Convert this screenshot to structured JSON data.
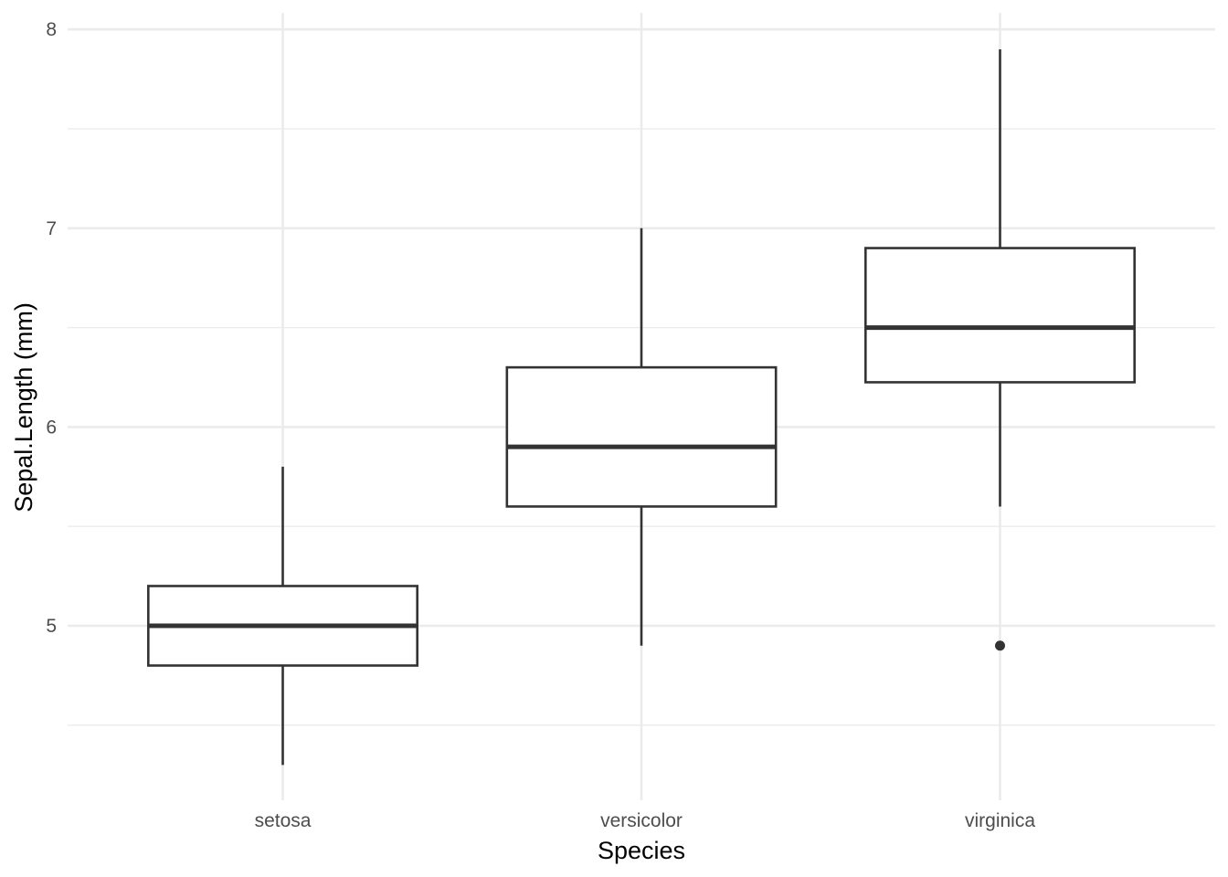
{
  "chart_data": {
    "type": "boxplot",
    "title": "",
    "xlabel": "Species",
    "ylabel": "Sepal.Length (mm)",
    "categories": [
      "setosa",
      "versicolor",
      "virginica"
    ],
    "ylim": [
      4.12,
      8.08
    ],
    "yticks": [
      5,
      6,
      7,
      8
    ],
    "ytick_labels": [
      "5",
      "6",
      "7",
      "8"
    ],
    "yminor": [
      4.5,
      5.5,
      6.5,
      7.5
    ],
    "grid": true,
    "legend": "none",
    "boxes": [
      {
        "category": "setosa",
        "min": 4.3,
        "q1": 4.8,
        "median": 5.0,
        "q3": 5.2,
        "max": 5.8,
        "outliers": []
      },
      {
        "category": "versicolor",
        "min": 4.9,
        "q1": 5.6,
        "median": 5.9,
        "q3": 6.3,
        "max": 7.0,
        "outliers": []
      },
      {
        "category": "virginica",
        "min": 5.6,
        "q1": 6.225,
        "median": 6.5,
        "q3": 6.9,
        "max": 7.9,
        "outliers": [
          4.9
        ]
      }
    ],
    "colors": {
      "box": "#333333",
      "fill": "#ffffff",
      "grid": "#ebebeb"
    }
  }
}
